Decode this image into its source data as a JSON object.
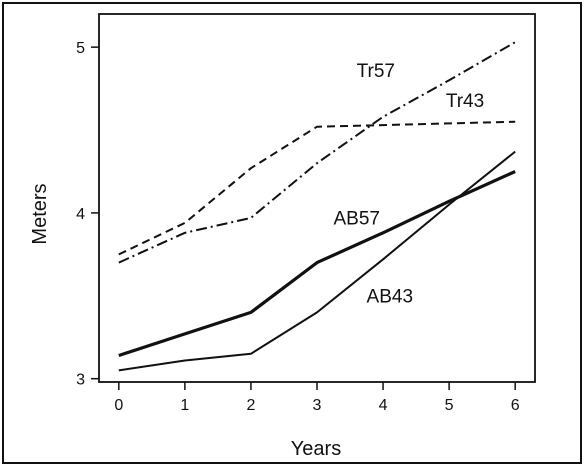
{
  "chart_data": {
    "type": "line",
    "title": "",
    "xlabel": "Years",
    "ylabel": "Meters",
    "xlim": [
      -0.3,
      6.3
    ],
    "ylim": [
      2.98,
      5.2
    ],
    "x_ticks": [
      0,
      1,
      2,
      3,
      4,
      5,
      6
    ],
    "y_ticks": [
      3,
      4,
      5
    ],
    "grid": false,
    "legend": "none (series labeled directly on lines)",
    "series": [
      {
        "name": "Tr57",
        "style": "dash-dot",
        "weight": "thin",
        "x": [
          0,
          1,
          2,
          3,
          4,
          5,
          6
        ],
        "y": [
          3.7,
          3.88,
          3.97,
          4.3,
          4.58,
          4.8,
          5.03
        ]
      },
      {
        "name": "Tr43",
        "style": "dashed",
        "weight": "thin",
        "x": [
          0,
          1,
          2,
          3,
          4,
          5,
          6
        ],
        "y": [
          3.75,
          3.94,
          4.27,
          4.52,
          4.53,
          4.54,
          4.55
        ]
      },
      {
        "name": "AB57",
        "style": "solid",
        "weight": "thick",
        "x": [
          0,
          1,
          2,
          3,
          4,
          5,
          6
        ],
        "y": [
          3.14,
          3.27,
          3.4,
          3.7,
          3.88,
          4.07,
          4.25
        ]
      },
      {
        "name": "AB43",
        "style": "solid",
        "weight": "thin",
        "x": [
          0,
          1,
          2,
          3,
          4,
          5,
          6
        ],
        "y": [
          3.05,
          3.11,
          3.15,
          3.4,
          3.72,
          4.05,
          4.37
        ]
      }
    ]
  }
}
